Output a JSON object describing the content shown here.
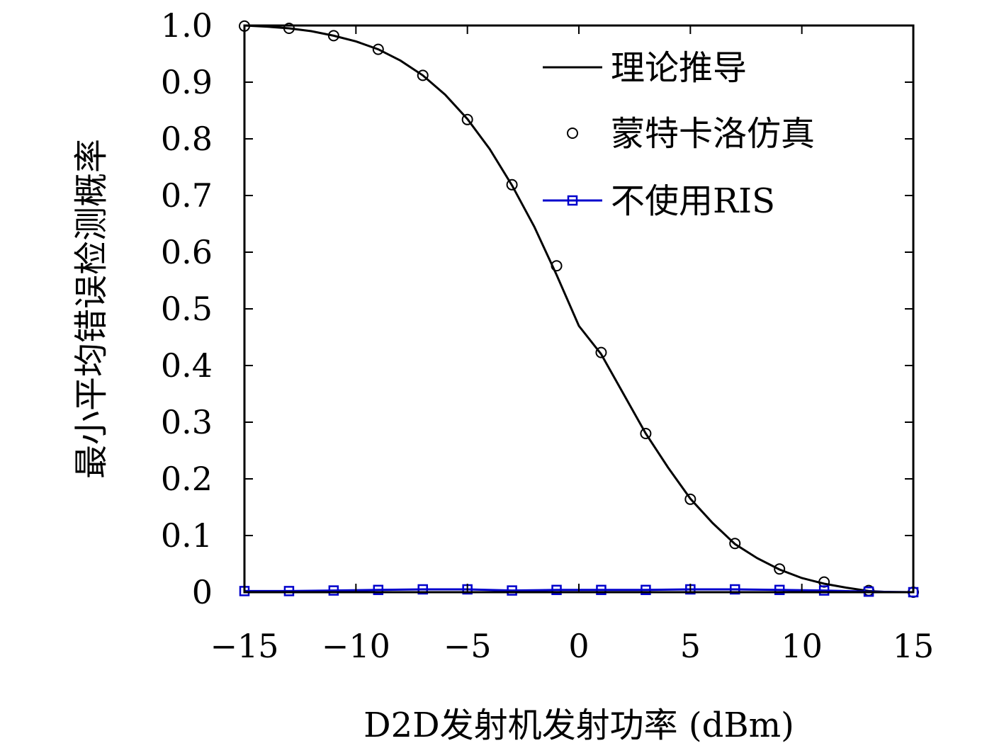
{
  "chart_data": {
    "type": "line",
    "title": "",
    "xlabel": "D2D发射机发射功率 (dBm)",
    "ylabel": "最小平均错误检测概率",
    "xlim": [
      -15,
      15
    ],
    "ylim": [
      0,
      1.0
    ],
    "xticks": [
      -15,
      -10,
      -5,
      0,
      5,
      10,
      15
    ],
    "xtick_labels": [
      "−15",
      "−10",
      "−5",
      "0",
      "5",
      "10",
      "15"
    ],
    "yticks": [
      0,
      0.1,
      0.2,
      0.3,
      0.4,
      0.5,
      0.6,
      0.7,
      0.8,
      0.9,
      1.0
    ],
    "ytick_labels": [
      "0",
      "0.1",
      "0.2",
      "0.3",
      "0.4",
      "0.5",
      "0.6",
      "0.7",
      "0.8",
      "0.9",
      "1.0"
    ],
    "grid": false,
    "legend_position": "top-right",
    "series": [
      {
        "name": "理论推导",
        "style": "line",
        "color": "#000000",
        "x": [
          -15,
          -14,
          -13,
          -12,
          -11,
          -10,
          -9,
          -8,
          -7,
          -6,
          -5,
          -4,
          -3,
          -2,
          -1,
          0,
          1,
          2,
          3,
          4,
          5,
          6,
          7,
          8,
          9,
          10,
          11,
          12,
          13,
          14,
          15
        ],
        "y": [
          1.0,
          0.998,
          0.995,
          0.99,
          0.982,
          0.972,
          0.958,
          0.938,
          0.912,
          0.878,
          0.835,
          0.782,
          0.718,
          0.645,
          0.56,
          0.47,
          0.42,
          0.35,
          0.28,
          0.22,
          0.165,
          0.122,
          0.085,
          0.06,
          0.04,
          0.025,
          0.015,
          0.008,
          0.002,
          0.0,
          0.0
        ]
      },
      {
        "name": "蒙特卡洛仿真",
        "style": "markers",
        "marker": "circle",
        "color": "#000000",
        "x": [
          -15,
          -13,
          -11,
          -9,
          -7,
          -5,
          -3,
          -1,
          1,
          3,
          5,
          7,
          9,
          11,
          13,
          15
        ],
        "y": [
          0.999,
          0.995,
          0.982,
          0.958,
          0.912,
          0.834,
          0.719,
          0.576,
          0.423,
          0.28,
          0.164,
          0.086,
          0.041,
          0.018,
          0.003,
          0.0
        ]
      },
      {
        "name": "不使用RIS",
        "style": "line-markers",
        "marker": "square",
        "color": "#0000cc",
        "x": [
          -15,
          -13,
          -11,
          -9,
          -7,
          -5,
          -3,
          -1,
          1,
          3,
          5,
          7,
          9,
          11,
          13,
          15
        ],
        "y": [
          0.002,
          0.002,
          0.003,
          0.004,
          0.005,
          0.005,
          0.003,
          0.004,
          0.004,
          0.004,
          0.005,
          0.005,
          0.004,
          0.003,
          0.001,
          0.0
        ]
      }
    ]
  }
}
